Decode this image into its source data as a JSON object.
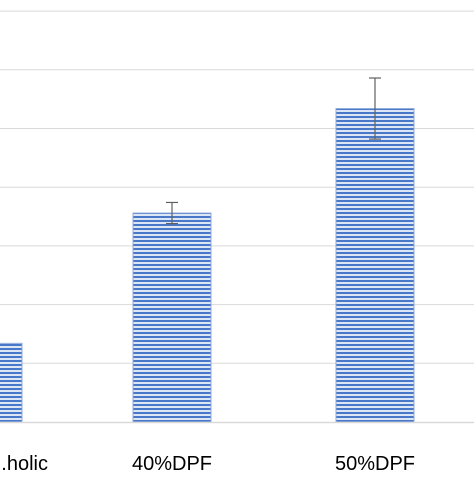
{
  "chart_data": {
    "type": "bar",
    "categories": [
      "...holic",
      "40%DPF",
      "50%DPF"
    ],
    "values": [
      0.67,
      1.78,
      2.67
    ],
    "error_bars": [
      null,
      0.09,
      0.26
    ],
    "ylim": [
      0,
      3.5
    ],
    "gridlines": [
      0,
      0.5,
      1.0,
      1.5,
      2.0,
      2.5,
      3.0,
      3.5
    ],
    "title": "",
    "xlabel": "",
    "ylabel": "",
    "grid": true,
    "bar_color": "#4472c4",
    "bar_fill_light": "#c5d6f0",
    "bar_border": "#8eaadb",
    "error_bar_color": "#606060",
    "axis_color": "#d9d9d9",
    "grid_color": "#d9d9d9",
    "label_color": "#000000"
  }
}
